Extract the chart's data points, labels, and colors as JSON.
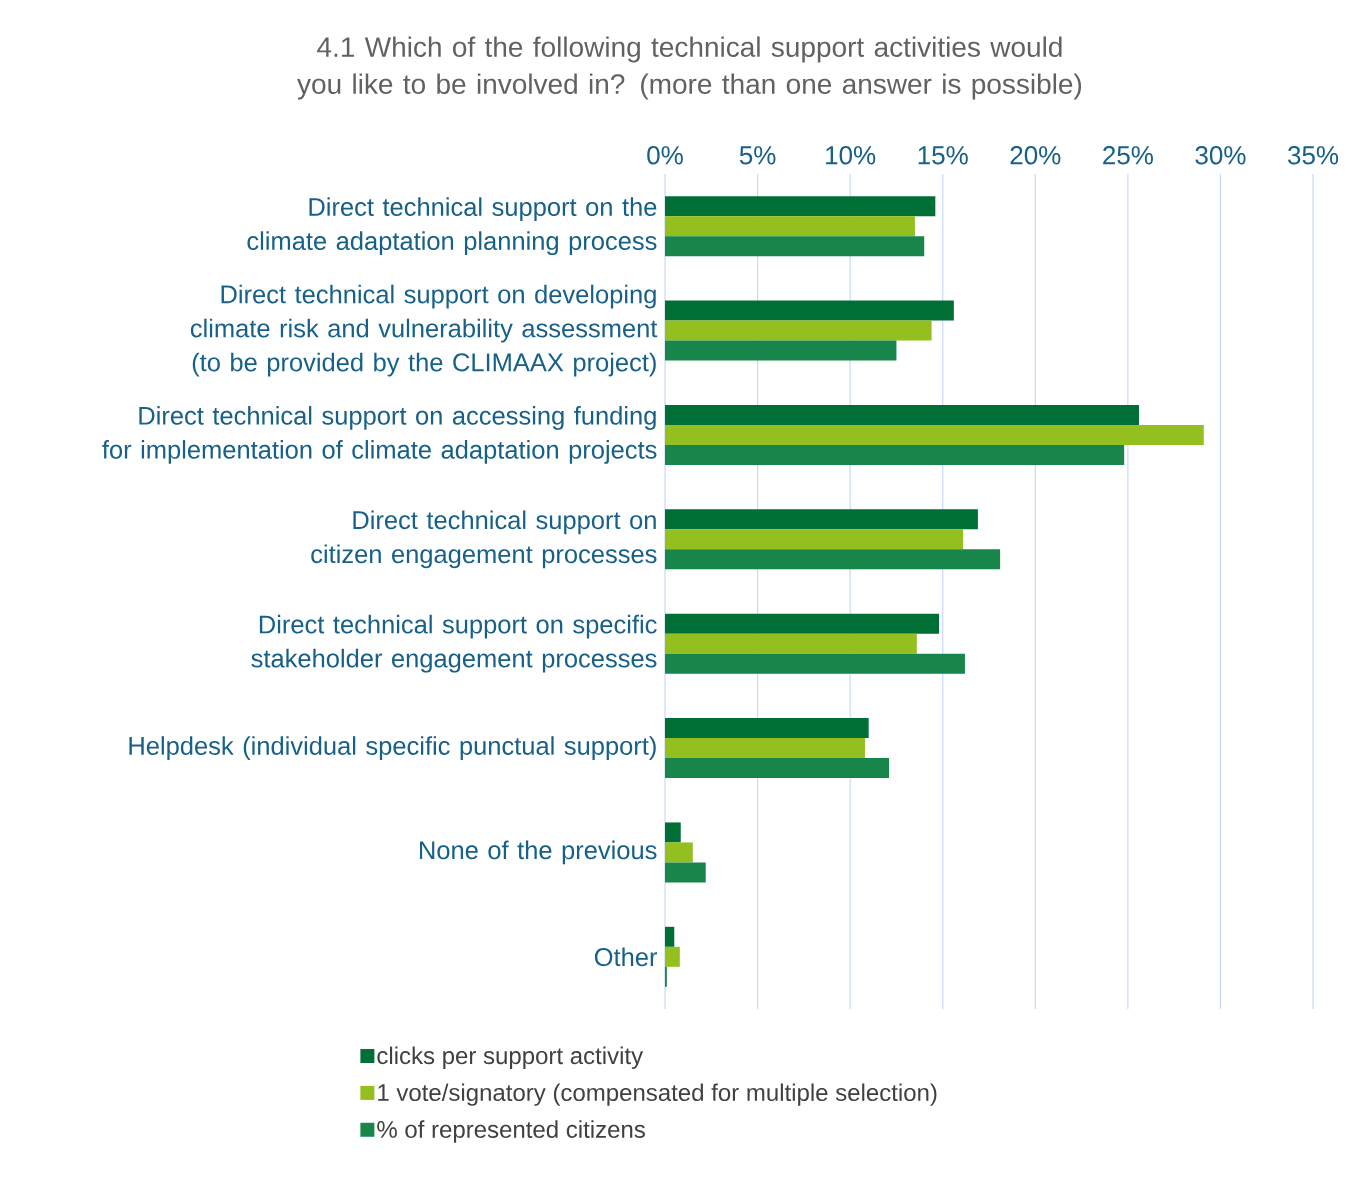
{
  "chart_data": {
    "type": "bar",
    "orientation": "horizontal",
    "title": "4.1 Which of the following technical support activities would you like to be involved in? (more than one answer is possible)",
    "categories": [
      "Direct technical support on the climate adaptation planning process",
      "Direct technical support on developing climate risk and vulnerability assessment (to be provided by the CLIMAAX project)",
      "Direct technical support on accessing funding for implementation of climate adaptation projects",
      "Direct technical support on citizen engagement processes",
      "Direct technical support on specific stakeholder engagement processes",
      "Helpdesk (individual specific punctual support)",
      "None of the previous",
      "Other"
    ],
    "series": [
      {
        "name": "clicks per support activity",
        "color": "#006f35",
        "values": [
          14.6,
          15.6,
          25.6,
          16.9,
          14.8,
          11.0,
          0.85,
          0.5
        ]
      },
      {
        "name": "1 vote/signatory (compensated for multiple selection)",
        "color": "#93c01f",
        "values": [
          13.5,
          14.4,
          29.1,
          16.1,
          13.6,
          10.8,
          1.5,
          0.8
        ]
      },
      {
        "name": "% of represented citizens",
        "color": "#18864b",
        "values": [
          14.0,
          12.5,
          24.8,
          18.1,
          16.2,
          12.1,
          2.2,
          0.1
        ]
      }
    ],
    "xlim": [
      0,
      35
    ],
    "xticks": [
      {
        "value": 0,
        "label": "0%"
      },
      {
        "value": 5,
        "label": "5%"
      },
      {
        "value": 10,
        "label": "10%"
      },
      {
        "value": 15,
        "label": "15%"
      },
      {
        "value": 20,
        "label": "20%"
      },
      {
        "value": 25,
        "label": "25%"
      },
      {
        "value": 30,
        "label": "30%"
      },
      {
        "value": 35,
        "label": "35%"
      }
    ],
    "grid": "x",
    "legend": "bottom"
  }
}
